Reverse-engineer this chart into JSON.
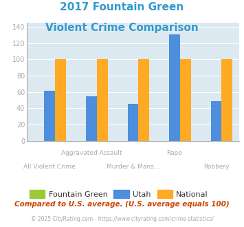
{
  "title_line1": "2017 Fountain Green",
  "title_line2": "Violent Crime Comparison",
  "title_color": "#3399cc",
  "categories": [
    "All Violent Crime",
    "Aggravated Assault",
    "Murder & Mans...",
    "Rape",
    "Robbery"
  ],
  "row1_labels": [
    "",
    "Aggravated Assault",
    "",
    "Rape",
    ""
  ],
  "row2_labels": [
    "All Violent Crime",
    "",
    "Murder & Mans...",
    "",
    "Robbery"
  ],
  "series": {
    "Fountain Green": {
      "values": [
        0,
        0,
        0,
        0,
        0
      ],
      "color": "#99cc33"
    },
    "Utah": {
      "values": [
        61,
        55,
        45,
        131,
        49
      ],
      "color": "#4d8fdc"
    },
    "National": {
      "values": [
        100,
        100,
        100,
        100,
        100
      ],
      "color": "#ffaa22"
    }
  },
  "ylim": [
    0,
    145
  ],
  "yticks": [
    0,
    20,
    40,
    60,
    80,
    100,
    120,
    140
  ],
  "plot_bg_color": "#dce9f0",
  "fig_bg_color": "#ffffff",
  "grid_color": "#ffffff",
  "footnote1": "Compared to U.S. average. (U.S. average equals 100)",
  "footnote2": "© 2025 CityRating.com - https://www.cityrating.com/crime-statistics/",
  "footnote1_color": "#cc4400",
  "footnote2_color": "#aaaaaa",
  "footnote2_link_color": "#3399cc",
  "legend_labels": [
    "Fountain Green",
    "Utah",
    "National"
  ],
  "legend_colors": [
    "#99cc33",
    "#4d8fdc",
    "#ffaa22"
  ],
  "bar_width": 0.26,
  "tick_label_color": "#aaaaaa",
  "tick_label_fontsize": 7.0
}
